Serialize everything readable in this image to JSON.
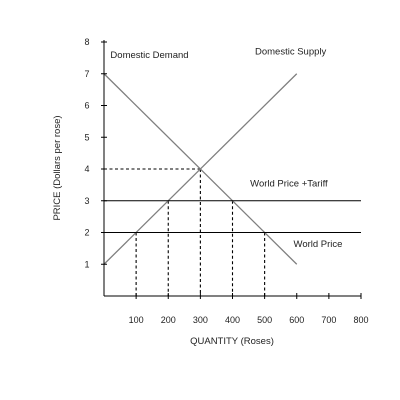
{
  "chart_data": {
    "type": "line",
    "title": "",
    "xlabel": "QUANTITY (Roses)",
    "ylabel": "PRICE (Dollars per rose)",
    "xlim": [
      0,
      800
    ],
    "ylim": [
      0,
      8
    ],
    "x_ticks": [
      100,
      200,
      300,
      400,
      500,
      600,
      700,
      800
    ],
    "y_ticks": [
      1,
      2,
      3,
      4,
      5,
      6,
      7,
      8
    ],
    "grid": false,
    "colors": {
      "curves": "#7f7f7f",
      "price_lines": "#000000",
      "guides": "#000000",
      "axes": "#000000",
      "text": "#222222"
    },
    "series": [
      {
        "name": "Domestic Demand",
        "kind": "curve",
        "x": [
          0,
          600
        ],
        "y": [
          7,
          1
        ]
      },
      {
        "name": "Domestic Supply",
        "kind": "curve",
        "x": [
          0,
          600
        ],
        "y": [
          1,
          7
        ]
      },
      {
        "name": "World Price + Tariff",
        "kind": "horizontal",
        "x": [
          0,
          800
        ],
        "y": [
          3,
          3
        ]
      },
      {
        "name": "World Price",
        "kind": "horizontal",
        "x": [
          0,
          800
        ],
        "y": [
          2,
          2
        ]
      }
    ],
    "guides": [
      {
        "x": 100,
        "y": 2
      },
      {
        "x": 200,
        "y": 3
      },
      {
        "x": 300,
        "y": 4,
        "to_y_axis": true
      },
      {
        "x": 400,
        "y": 3
      },
      {
        "x": 500,
        "y": 2
      }
    ],
    "annotations": [
      {
        "text": "Domestic Demand",
        "series": "Domestic Demand",
        "x": 20,
        "y": 7.5
      },
      {
        "text": "Domestic Supply",
        "series": "Domestic Supply",
        "x": 470,
        "y": 7.6
      },
      {
        "text": "World Price +Tariff",
        "series": "World Price + Tariff",
        "x": 455,
        "y": 3.45
      },
      {
        "text": "World Price",
        "series": "World Price",
        "x": 590,
        "y": 1.55
      }
    ]
  }
}
